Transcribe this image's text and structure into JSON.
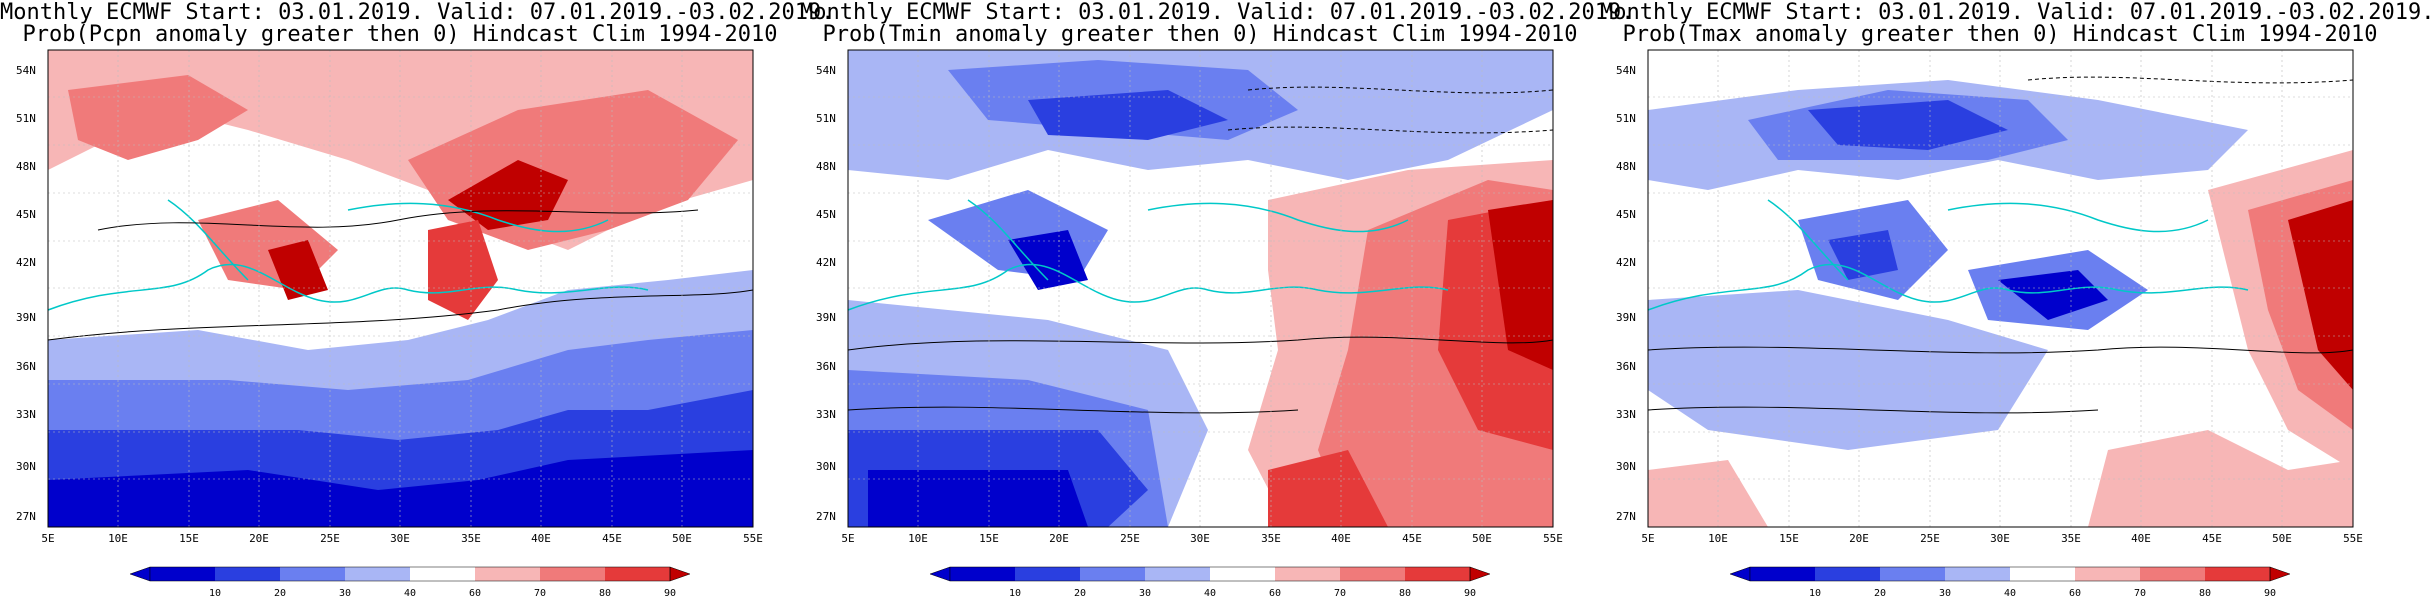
{
  "panels": [
    {
      "title_line1": "Monthly ECMWF Start: 03.01.2019. Valid: 07.01.2019.-03.02.2019.",
      "title_line2": "Prob(Pcpn anomaly greater then 0) Hindcast Clim 1994-2010"
    },
    {
      "title_line1": "Monthly ECMWF Start: 03.01.2019. Valid: 07.01.2019.-03.02.2019.",
      "title_line2": "Prob(Tmin anomaly greater then 0) Hindcast Clim 1994-2010"
    },
    {
      "title_line1": "Monthly ECMWF Start: 03.01.2019. Valid: 07.01.2019.-03.02.2019.",
      "title_line2": "Prob(Tmax anomaly greater then 0) Hindcast Clim 1994-2010"
    }
  ],
  "latitude_labels": [
    "54N",
    "51N",
    "48N",
    "45N",
    "42N",
    "39N",
    "36N",
    "33N",
    "30N",
    "27N"
  ],
  "longitude_labels": [
    "5E",
    "10E",
    "15E",
    "20E",
    "25E",
    "30E",
    "35E",
    "40E",
    "45E",
    "50E",
    "55E"
  ],
  "colorbar": {
    "labels": [
      "10",
      "20",
      "30",
      "40",
      "60",
      "70",
      "80",
      "90"
    ],
    "colors": [
      "#0000cc",
      "#2a3fe0",
      "#6a7ff0",
      "#a9b6f5",
      "#ffffff",
      "#f7b6b6",
      "#f07a7a",
      "#e53a3a",
      "#c00000"
    ]
  }
}
